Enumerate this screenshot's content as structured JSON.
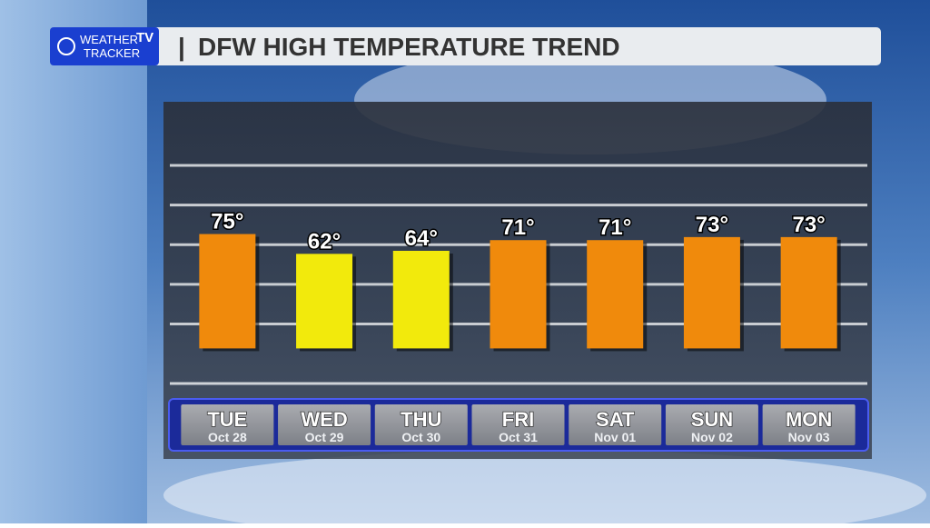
{
  "logo": {
    "line1": "WEATHER",
    "badge": "TV",
    "line2": "TRACKER"
  },
  "chart_data": {
    "type": "bar",
    "title": "DFW HIGH TEMPERATURE TREND",
    "categories": [
      "TUE",
      "WED",
      "THU",
      "FRI",
      "SAT",
      "SUN",
      "MON"
    ],
    "sublabels": [
      "Oct 28",
      "Oct 29",
      "Oct 30",
      "Oct 31",
      "Nov 01",
      "Nov 02",
      "Nov 03"
    ],
    "values": [
      75,
      62,
      64,
      71,
      71,
      73,
      73
    ],
    "value_labels": [
      "75°",
      "62°",
      "64°",
      "71°",
      "71°",
      "73°",
      "73°"
    ],
    "colors": [
      "#f08a0c",
      "#f2ea0c",
      "#f2ea0c",
      "#f08a0c",
      "#f08a0c",
      "#f08a0c",
      "#f08a0c"
    ],
    "ylim": [
      -23,
      120
    ],
    "yticks": [
      120,
      94,
      68,
      42,
      16
    ],
    "grid": true
  }
}
